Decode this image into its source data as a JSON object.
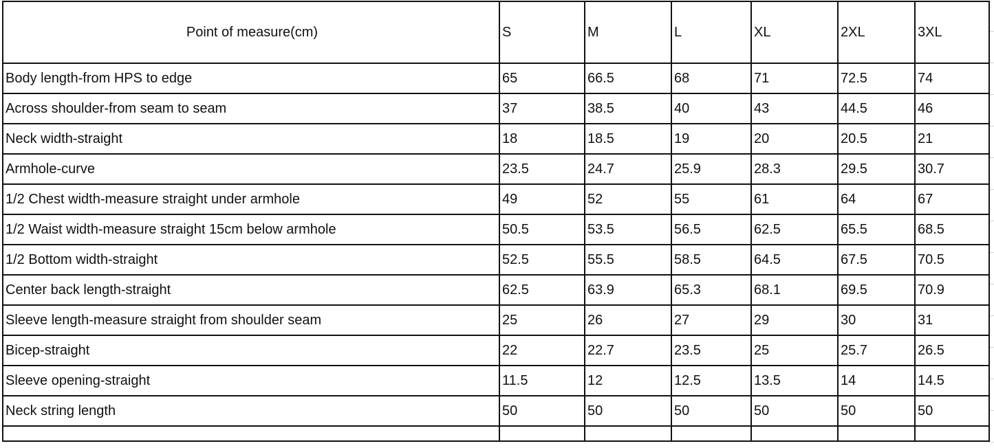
{
  "header": {
    "point_of_measure": "Point of measure(cm)",
    "sizes": [
      "S",
      "M",
      "L",
      "XL",
      "2XL",
      "3XL"
    ]
  },
  "rows": [
    {
      "label": "Body  length-from HPS to edge",
      "values": [
        "65",
        "66.5",
        "68",
        "71",
        "72.5",
        "74"
      ]
    },
    {
      "label": "Across shoulder-from seam to seam",
      "values": [
        "37",
        "38.5",
        "40",
        "43",
        "44.5",
        "46"
      ]
    },
    {
      "label": "Neck width-straight",
      "values": [
        "18",
        "18.5",
        "19",
        "20",
        "20.5",
        "21"
      ]
    },
    {
      "label": "Armhole-curve",
      "values": [
        "23.5",
        "24.7",
        "25.9",
        "28.3",
        "29.5",
        "30.7"
      ]
    },
    {
      "label": "1/2 Chest width-measure straight under armhole",
      "values": [
        "49",
        "52",
        "55",
        "61",
        "64",
        "67"
      ]
    },
    {
      "label": "1/2 Waist width-measure straight 15cm below armhole",
      "values": [
        "50.5",
        "53.5",
        "56.5",
        "62.5",
        "65.5",
        "68.5"
      ]
    },
    {
      "label": "1/2 Bottom width-straight",
      "values": [
        "52.5",
        "55.5",
        "58.5",
        "64.5",
        "67.5",
        "70.5"
      ]
    },
    {
      "label": "Center back length-straight",
      "values": [
        "62.5",
        "63.9",
        "65.3",
        "68.1",
        "69.5",
        "70.9"
      ]
    },
    {
      "label": "Sleeve length-measure straight from shoulder seam",
      "values": [
        "25",
        "26",
        "27",
        "29",
        "30",
        "31"
      ]
    },
    {
      "label": "Bicep-straight",
      "values": [
        "22",
        "22.7",
        "23.5",
        "25",
        "25.7",
        "26.5"
      ]
    },
    {
      "label": "Sleeve opening-straight",
      "values": [
        "11.5",
        "12",
        "12.5",
        "13.5",
        "14",
        "14.5"
      ]
    },
    {
      "label": "Neck string length",
      "values": [
        "50",
        "50",
        "50",
        "50",
        "50",
        "50"
      ]
    }
  ]
}
